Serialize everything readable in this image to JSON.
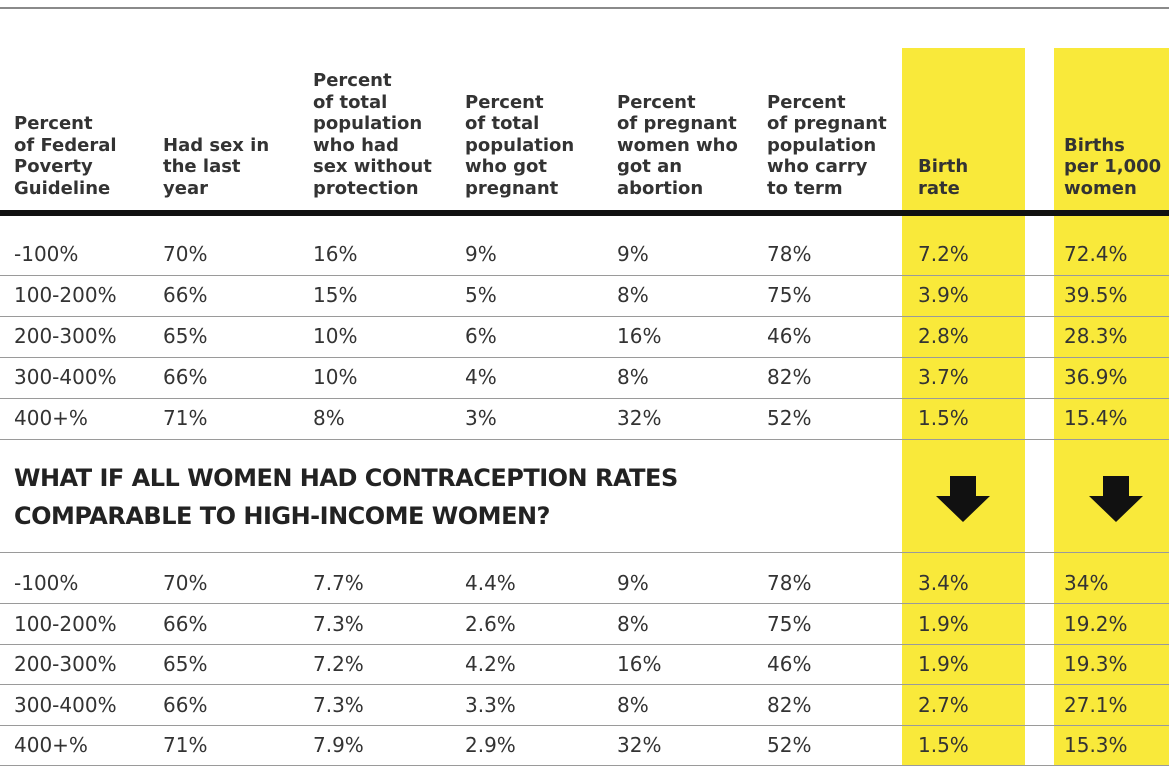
{
  "table": {
    "headers": [
      [
        "Percent",
        "of Federal",
        "Poverty",
        "Guideline"
      ],
      [
        "Had sex in",
        "the last",
        "year"
      ],
      [
        "Percent",
        "of total",
        "population",
        "who had",
        "sex without",
        "protection"
      ],
      [
        "Percent",
        "of total",
        "population",
        "who got",
        "pregnant"
      ],
      [
        "Percent",
        "of pregnant",
        "women who",
        "got an",
        "abortion"
      ],
      [
        "Percent",
        "of pregnant",
        "population",
        "who carry",
        "to term"
      ],
      [
        "Birth",
        "rate"
      ],
      [
        "Births",
        "per 1,000",
        "women"
      ]
    ],
    "rows": [
      [
        "-100%",
        "70%",
        "16%",
        "9%",
        "9%",
        "78%",
        "7.2%",
        "72.4%"
      ],
      [
        "100-200%",
        "66%",
        "15%",
        "5%",
        "8%",
        "75%",
        "3.9%",
        "39.5%"
      ],
      [
        "200-300%",
        "65%",
        "10%",
        "6%",
        "16%",
        "46%",
        "2.8%",
        "28.3%"
      ],
      [
        "300-400%",
        "66%",
        "10%",
        "4%",
        "8%",
        "82%",
        "3.7%",
        "36.9%"
      ],
      [
        "400+%",
        "71%",
        "8%",
        "3%",
        "32%",
        "52%",
        "1.5%",
        "15.4%"
      ]
    ],
    "section_heading": [
      "WHAT IF ALL WOMEN HAD CONTRACEPTION RATES",
      "COMPARABLE TO HIGH-INCOME WOMEN?"
    ],
    "scenario_rows": [
      [
        "-100%",
        "70%",
        "7.7%",
        "4.4%",
        "9%",
        "78%",
        "3.4%",
        "34%"
      ],
      [
        "100-200%",
        "66%",
        "7.3%",
        "2.6%",
        "8%",
        "75%",
        "1.9%",
        "19.2%"
      ],
      [
        "200-300%",
        "65%",
        "7.2%",
        "4.2%",
        "16%",
        "46%",
        "1.9%",
        "19.3%"
      ],
      [
        "300-400%",
        "66%",
        "7.3%",
        "3.3%",
        "8%",
        "82%",
        "2.7%",
        "27.1%"
      ],
      [
        "400+%",
        "71%",
        "7.9%",
        "2.9%",
        "32%",
        "52%",
        "1.5%",
        "15.3%"
      ]
    ]
  }
}
